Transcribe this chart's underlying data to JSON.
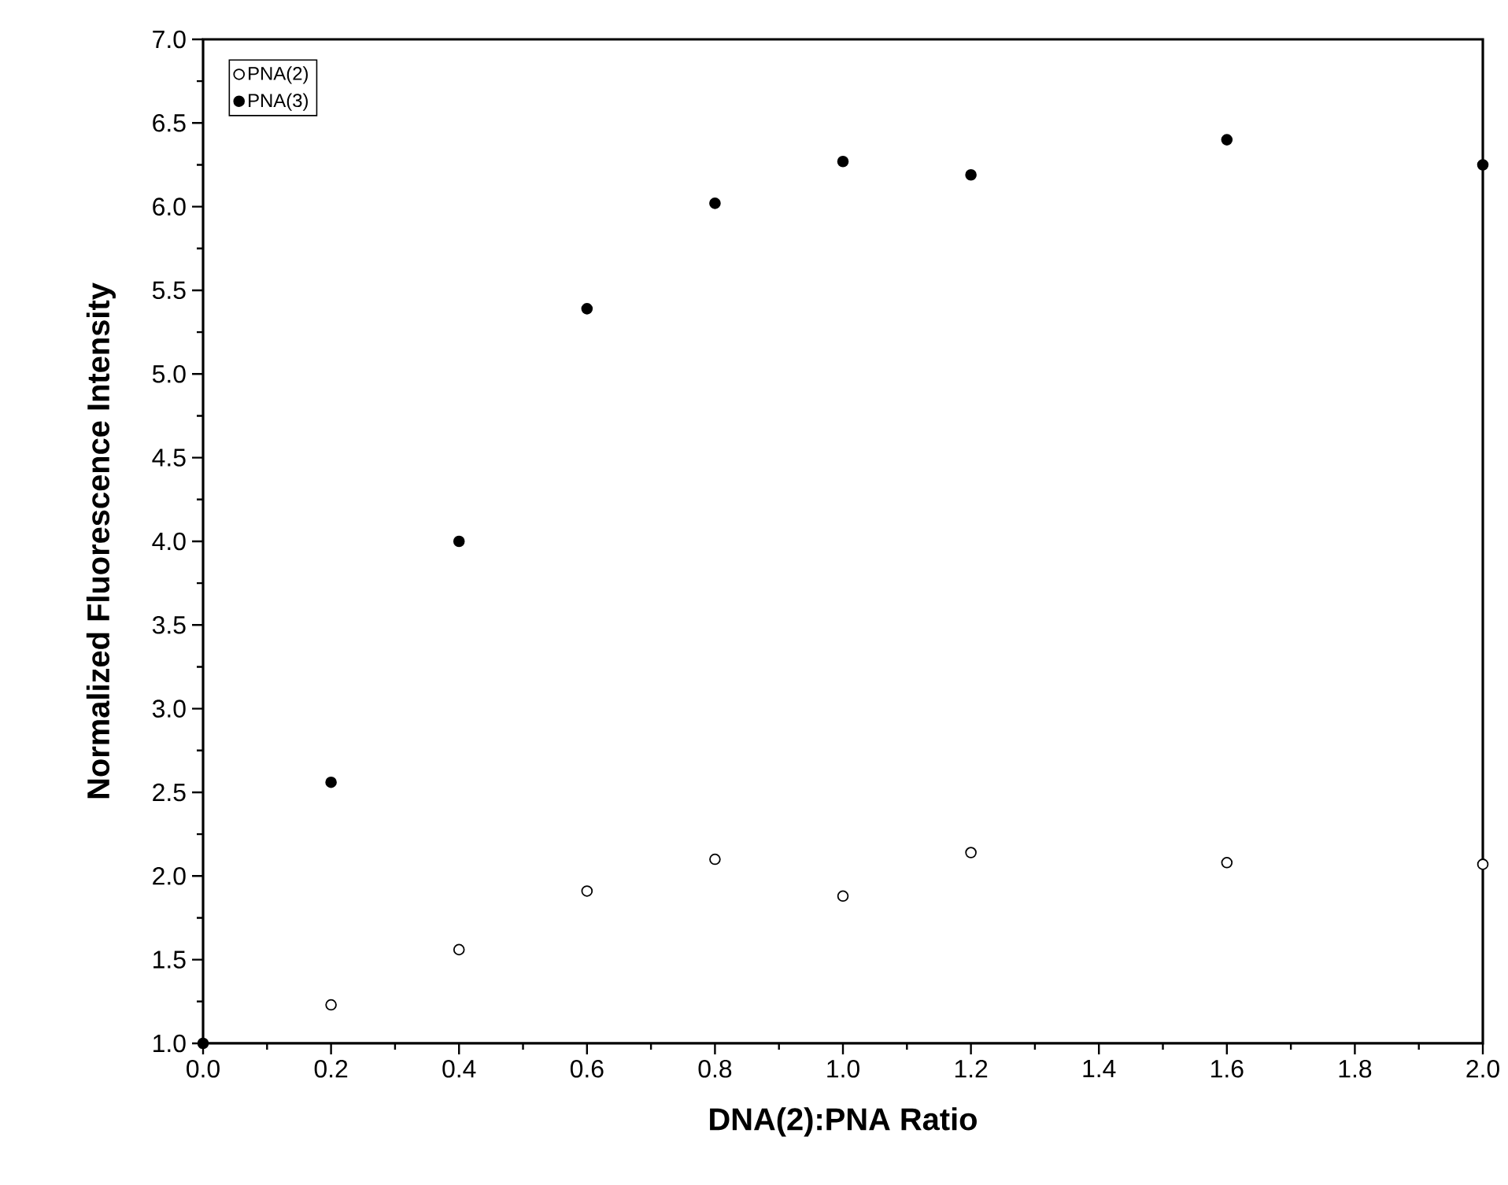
{
  "chart_data": {
    "type": "scatter",
    "xlabel": "DNA(2):PNA Ratio",
    "ylabel": "Normalized Fluorescence Intensity",
    "xlim": [
      0,
      2
    ],
    "ylim": [
      1,
      7
    ],
    "xticks": [
      {
        "value": 0,
        "label": "0.0"
      },
      {
        "value": 0.2,
        "label": "0.2"
      },
      {
        "value": 0.4,
        "label": "0.4"
      },
      {
        "value": 0.6,
        "label": "0.6"
      },
      {
        "value": 0.8,
        "label": "0.8"
      },
      {
        "value": 1,
        "label": "1.0"
      },
      {
        "value": 1.2,
        "label": "1.2"
      },
      {
        "value": 1.4,
        "label": "1.4"
      },
      {
        "value": 1.6,
        "label": "1.6"
      },
      {
        "value": 1.8,
        "label": "1.8"
      },
      {
        "value": 2,
        "label": "2.0"
      }
    ],
    "yticks": [
      {
        "value": 1,
        "label": "1.0"
      },
      {
        "value": 1.5,
        "label": "1.5"
      },
      {
        "value": 2,
        "label": "2.0"
      },
      {
        "value": 2.5,
        "label": "2.5"
      },
      {
        "value": 3,
        "label": "3.0"
      },
      {
        "value": 3.5,
        "label": "3.5"
      },
      {
        "value": 4,
        "label": "4.0"
      },
      {
        "value": 4.5,
        "label": "4.5"
      },
      {
        "value": 5,
        "label": "5.0"
      },
      {
        "value": 5.5,
        "label": "5.5"
      },
      {
        "value": 6,
        "label": "6.0"
      },
      {
        "value": 6.5,
        "label": "6.5"
      },
      {
        "value": 7,
        "label": "7.0"
      }
    ],
    "x": [
      0,
      0.2,
      0.4,
      0.6,
      0.8,
      1.0,
      1.2,
      1.6,
      2.0
    ],
    "marker": "circle",
    "legend": "top left",
    "grid": false,
    "series": [
      {
        "name": "PNA(2)",
        "color": "#ffffff",
        "values": [
          null,
          1.23,
          1.56,
          1.91,
          2.1,
          1.88,
          2.14,
          2.08,
          2.07
        ]
      },
      {
        "name": "PNA(3)",
        "color": "#000000",
        "values": [
          1.0,
          2.56,
          4.0,
          5.39,
          6.02,
          6.27,
          6.19,
          6.4,
          6.25
        ]
      }
    ]
  }
}
